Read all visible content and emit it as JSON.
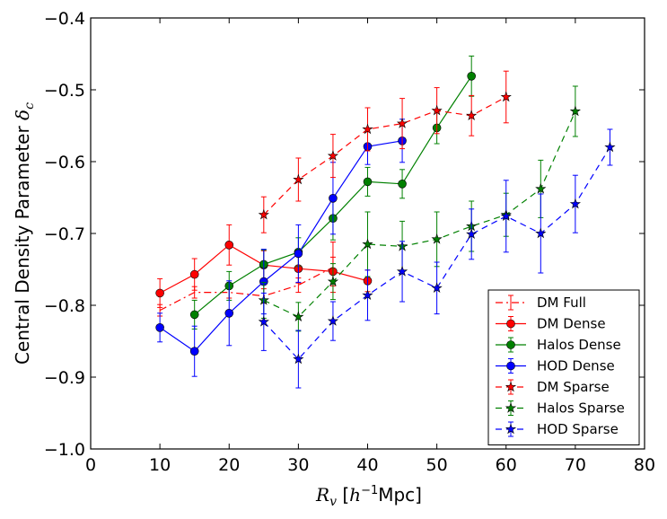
{
  "chart_data": {
    "type": "line",
    "xlabel": {
      "symbol": "R",
      "sub": "v",
      "unit_pre": " [",
      "unit_h": "h",
      "unit_exp": "−1",
      "unit_post": "Mpc]"
    },
    "ylabel": {
      "text": "Central Density Parameter ",
      "symbol": "δ",
      "sub": "c"
    },
    "xlim": [
      0,
      80
    ],
    "ylim": [
      -1.0,
      -0.4
    ],
    "x_ticks": [
      0,
      10,
      20,
      30,
      40,
      50,
      60,
      70,
      80
    ],
    "x_tick_labels": [
      "0",
      "10",
      "20",
      "30",
      "40",
      "50",
      "60",
      "70",
      "80"
    ],
    "y_ticks": [
      -1.0,
      -0.9,
      -0.8,
      -0.7,
      -0.6,
      -0.5,
      -0.4
    ],
    "y_tick_labels": [
      "−1.0",
      "−0.9",
      "−0.8",
      "−0.7",
      "−0.6",
      "−0.5",
      "−0.4"
    ],
    "legend_position": "lower-right",
    "series": [
      {
        "name": "DM Full",
        "color": "#ff0000",
        "dash": "dashdot",
        "marker": "none",
        "x": [
          10,
          15,
          20,
          25,
          30,
          35
        ],
        "y": [
          -0.807,
          -0.782,
          -0.782,
          -0.787,
          -0.772,
          -0.747
        ],
        "yerr": [
          0.008,
          0.008,
          0.008,
          0.01,
          0.01,
          0.035
        ]
      },
      {
        "name": "DM Dense",
        "color": "#ff0000",
        "dash": "solid",
        "marker": "circle",
        "x": [
          10,
          15,
          20,
          25,
          30,
          35,
          40
        ],
        "y": [
          -0.783,
          -0.757,
          -0.716,
          -0.744,
          -0.749,
          -0.753,
          -0.766
        ],
        "yerr": [
          0.02,
          0.022,
          0.028,
          0.02,
          0.02,
          0.02,
          0.015
        ]
      },
      {
        "name": "Halos Dense",
        "color": "#008000",
        "dash": "solid",
        "marker": "circle",
        "x": [
          15,
          20,
          25,
          30,
          35,
          40,
          45,
          50,
          55
        ],
        "y": [
          -0.813,
          -0.773,
          -0.743,
          -0.726,
          -0.679,
          -0.628,
          -0.631,
          -0.553,
          -0.481
        ],
        "yerr": [
          0.02,
          0.02,
          0.02,
          0.02,
          0.03,
          0.02,
          0.02,
          0.022,
          0.028
        ]
      },
      {
        "name": "HOD Dense",
        "color": "#0000ff",
        "dash": "solid",
        "marker": "circle",
        "x": [
          10,
          15,
          20,
          25,
          30,
          35,
          40,
          45
        ],
        "y": [
          -0.831,
          -0.864,
          -0.811,
          -0.767,
          -0.728,
          -0.651,
          -0.579,
          -0.571
        ],
        "yerr": [
          0.02,
          0.035,
          0.045,
          0.045,
          0.04,
          0.05,
          0.025,
          0.03
        ]
      },
      {
        "name": "DM Sparse",
        "color": "#ff0000",
        "dash": "dashed",
        "marker": "star",
        "x": [
          25,
          30,
          35,
          40,
          45,
          50,
          55,
          60
        ],
        "y": [
          -0.674,
          -0.625,
          -0.592,
          -0.555,
          -0.547,
          -0.529,
          -0.536,
          -0.51
        ],
        "yerr": [
          0.025,
          0.03,
          0.03,
          0.03,
          0.035,
          0.032,
          0.028,
          0.036
        ]
      },
      {
        "name": "Halos Sparse",
        "color": "#008000",
        "dash": "dashed",
        "marker": "star",
        "x": [
          25,
          30,
          35,
          40,
          45,
          50,
          55,
          60,
          65,
          70
        ],
        "y": [
          -0.793,
          -0.816,
          -0.767,
          -0.715,
          -0.718,
          -0.708,
          -0.69,
          -0.674,
          -0.638,
          -0.53
        ],
        "yerr": [
          0.025,
          0.02,
          0.025,
          0.045,
          0.035,
          0.038,
          0.035,
          0.03,
          0.04,
          0.035
        ]
      },
      {
        "name": "HOD Sparse",
        "color": "#0000ff",
        "dash": "dashed",
        "marker": "star",
        "x": [
          25,
          30,
          35,
          40,
          45,
          50,
          55,
          60,
          65,
          70,
          75
        ],
        "y": [
          -0.823,
          -0.875,
          -0.822,
          -0.786,
          -0.753,
          -0.776,
          -0.701,
          -0.676,
          -0.7,
          -0.659,
          -0.58
        ],
        "yerr": [
          0.04,
          0.04,
          0.027,
          0.035,
          0.042,
          0.036,
          0.035,
          0.05,
          0.055,
          0.04,
          0.025
        ]
      }
    ]
  }
}
